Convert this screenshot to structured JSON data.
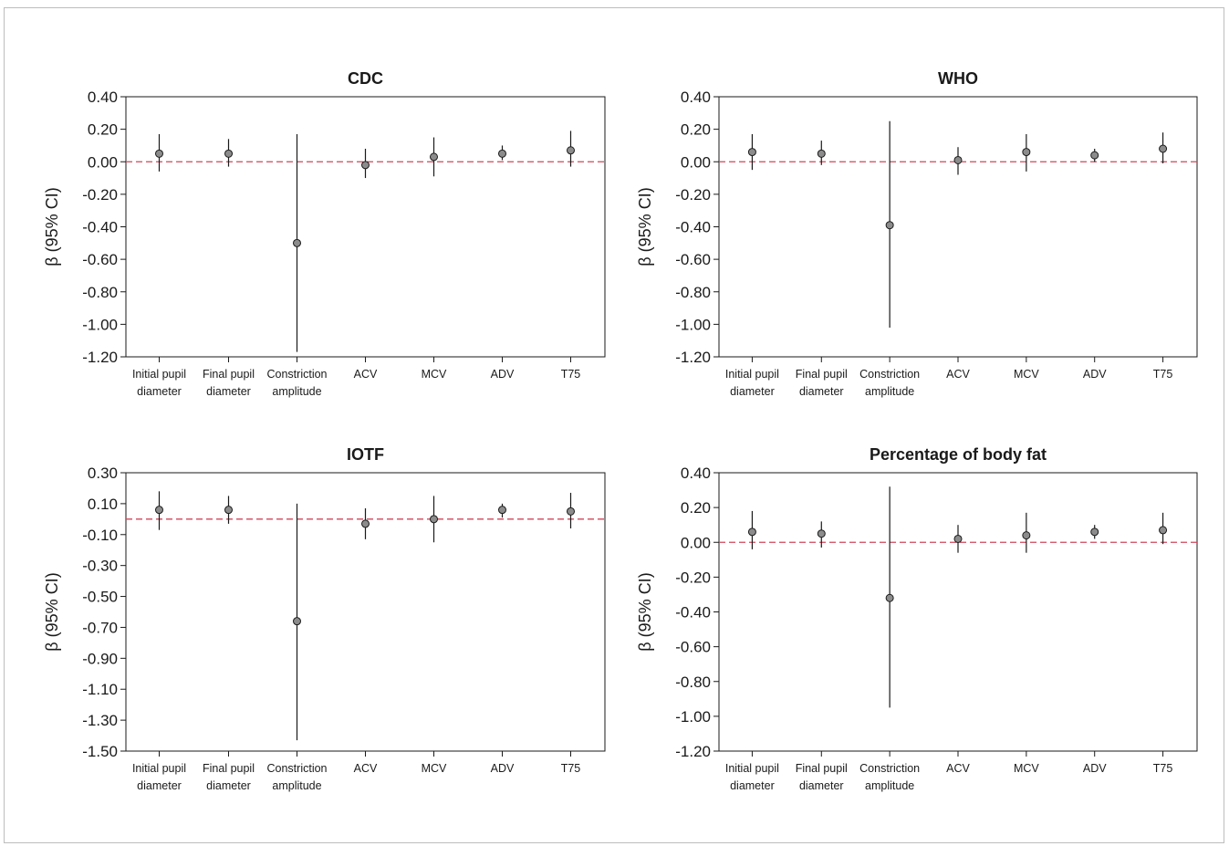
{
  "colors": {
    "reference_line": "#d0455a",
    "point_fill": "#8c8c8c",
    "axis": "#1a1a1a"
  },
  "chart_data": [
    {
      "type": "scatter",
      "title": "CDC",
      "ylabel": "β (95% CI)",
      "xlabel": "",
      "ylim": [
        -1.2,
        0.4
      ],
      "yticks": [
        "0.40",
        "0.20",
        "0.00",
        "-0.20",
        "-0.40",
        "-0.60",
        "-0.80",
        "-1.00",
        "-1.20"
      ],
      "reference_line": 0,
      "categories": [
        [
          "Initial pupil",
          "diameter"
        ],
        [
          "Final pupil",
          "diameter"
        ],
        [
          "Constriction",
          "amplitude"
        ],
        [
          "ACV"
        ],
        [
          "MCV"
        ],
        [
          "ADV"
        ],
        [
          "T75"
        ]
      ],
      "estimates": [
        0.05,
        0.05,
        -0.5,
        -0.02,
        0.03,
        0.05,
        0.07
      ],
      "ci_lower": [
        -0.06,
        -0.03,
        -1.17,
        -0.1,
        -0.09,
        0.01,
        -0.03
      ],
      "ci_upper": [
        0.17,
        0.14,
        0.17,
        0.08,
        0.15,
        0.1,
        0.19
      ]
    },
    {
      "type": "scatter",
      "title": "WHO",
      "ylabel": "β (95% CI)",
      "xlabel": "",
      "ylim": [
        -1.2,
        0.4
      ],
      "yticks": [
        "0.40",
        "0.20",
        "0.00",
        "-0.20",
        "-0.40",
        "-0.60",
        "-0.80",
        "-1.00",
        "-1.20"
      ],
      "reference_line": 0,
      "categories": [
        [
          "Initial pupil",
          "diameter"
        ],
        [
          "Final pupil",
          "diameter"
        ],
        [
          "Constriction",
          "amplitude"
        ],
        [
          "ACV"
        ],
        [
          "MCV"
        ],
        [
          "ADV"
        ],
        [
          "T75"
        ]
      ],
      "estimates": [
        0.06,
        0.05,
        -0.39,
        0.01,
        0.06,
        0.04,
        0.08
      ],
      "ci_lower": [
        -0.05,
        -0.02,
        -1.02,
        -0.08,
        -0.06,
        0.0,
        -0.01
      ],
      "ci_upper": [
        0.17,
        0.13,
        0.25,
        0.09,
        0.17,
        0.08,
        0.18
      ]
    },
    {
      "type": "scatter",
      "title": "IOTF",
      "ylabel": "β (95% CI)",
      "xlabel": "",
      "ylim": [
        -1.5,
        0.3
      ],
      "yticks": [
        "0.30",
        "0.10",
        "-0.10",
        "-0.30",
        "-0.50",
        "-0.70",
        "-0.90",
        "-1.10",
        "-1.30",
        "-1.50"
      ],
      "reference_line": 0,
      "categories": [
        [
          "Initial pupil",
          "diameter"
        ],
        [
          "Final pupil",
          "diameter"
        ],
        [
          "Constriction",
          "amplitude"
        ],
        [
          "ACV"
        ],
        [
          "MCV"
        ],
        [
          "ADV"
        ],
        [
          "T75"
        ]
      ],
      "estimates": [
        0.06,
        0.06,
        -0.66,
        -0.03,
        0.0,
        0.06,
        0.05
      ],
      "ci_lower": [
        -0.07,
        -0.03,
        -1.43,
        -0.13,
        -0.15,
        0.01,
        -0.06
      ],
      "ci_upper": [
        0.18,
        0.15,
        0.1,
        0.07,
        0.15,
        0.1,
        0.17
      ]
    },
    {
      "type": "scatter",
      "title": "Percentage of body fat",
      "ylabel": "β (95% CI)",
      "xlabel": "",
      "ylim": [
        -1.2,
        0.4
      ],
      "yticks": [
        "0.40",
        "0.20",
        "0.00",
        "-0.20",
        "-0.40",
        "-0.60",
        "-0.80",
        "-1.00",
        "-1.20"
      ],
      "reference_line": 0,
      "categories": [
        [
          "Initial pupil",
          "diameter"
        ],
        [
          "Final pupil",
          "diameter"
        ],
        [
          "Constriction",
          "amplitude"
        ],
        [
          "ACV"
        ],
        [
          "MCV"
        ],
        [
          "ADV"
        ],
        [
          "T75"
        ]
      ],
      "estimates": [
        0.06,
        0.05,
        -0.32,
        0.02,
        0.04,
        0.06,
        0.07
      ],
      "ci_lower": [
        -0.04,
        -0.03,
        -0.95,
        -0.06,
        -0.06,
        0.02,
        -0.01
      ],
      "ci_upper": [
        0.18,
        0.12,
        0.32,
        0.1,
        0.17,
        0.1,
        0.17
      ]
    }
  ]
}
